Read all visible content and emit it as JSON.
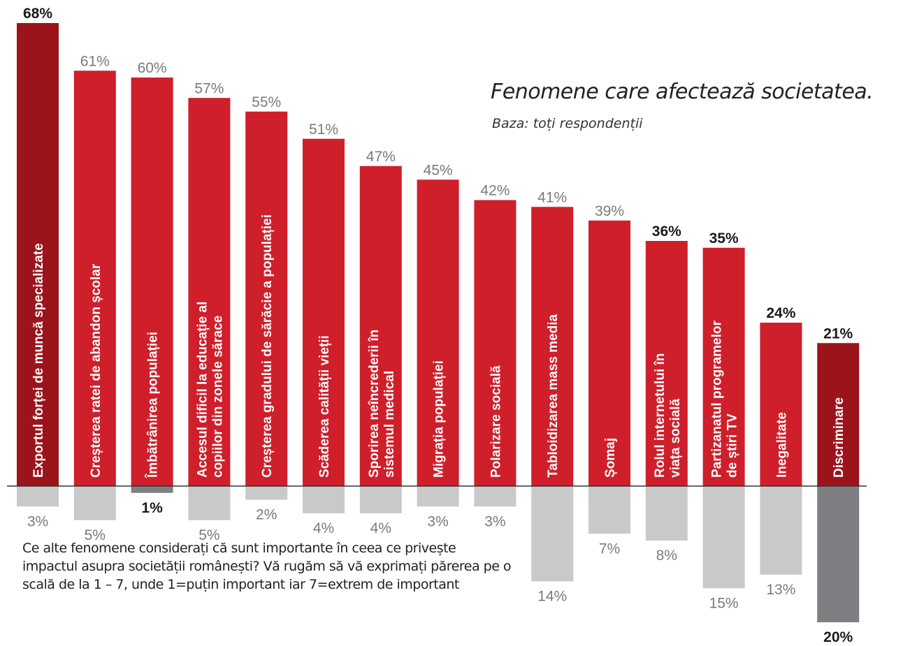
{
  "title": "Fenomene care afectează societatea.",
  "subtitle": "Baza: toți respondenții",
  "question": "Ce alte fenomene considerați că sunt importante în ceea ce privește impactul asupra societății românești? Vă rugăm să vă exprimați părerea pe o scală de la 1 – 7, unde 1=puțin important iar 7=extrem de important",
  "colors": {
    "positive": "#cf1f2b",
    "positive_highlight": "#9b141c",
    "negative": "#c9c9c9",
    "negative_highlight": "#7f7f83",
    "label_normal": "#7a7a7a",
    "label_bold": "#1a1a1a"
  },
  "chart_data": {
    "type": "bar",
    "title": "Fenomene care afectează societatea.",
    "subtitle": "Baza: toți respondenții",
    "series": [
      {
        "key": "important",
        "description": "bars above baseline"
      },
      {
        "key": "unimportant",
        "description": "bars below baseline"
      }
    ],
    "items": [
      {
        "category": "Exportul forței de muncă specializate",
        "important": 68,
        "important_label": "68%",
        "unimportant": 3,
        "unimportant_label": "3%",
        "highlight": "top"
      },
      {
        "category": "Creșterea ratei de abandon școlar",
        "important": 61,
        "important_label": "61%",
        "unimportant": 5,
        "unimportant_label": "5%"
      },
      {
        "category": "Îmbătrânirea populației",
        "important": 60,
        "important_label": "60%",
        "unimportant": 1,
        "unimportant_label": "1%",
        "highlight": "bottom"
      },
      {
        "category": "Accesul dificil la educație al copiilor din zonele sărace",
        "important": 57,
        "important_label": "57%",
        "unimportant": 5,
        "unimportant_label": "5%"
      },
      {
        "category": "Creșterea gradului de sărăcie a populației",
        "important": 55,
        "important_label": "55%",
        "unimportant": 2,
        "unimportant_label": "2%"
      },
      {
        "category": "Scăderea calității vieții",
        "important": 51,
        "important_label": "51%",
        "unimportant": 4,
        "unimportant_label": "4%"
      },
      {
        "category": "Sporirea neîncrederii în sistemul medical",
        "important": 47,
        "important_label": "47%",
        "unimportant": 4,
        "unimportant_label": "4%"
      },
      {
        "category": "Migrația populației",
        "important": 45,
        "important_label": "45%",
        "unimportant": 3,
        "unimportant_label": "3%"
      },
      {
        "category": "Polarizare socială",
        "important": 42,
        "important_label": "42%",
        "unimportant": 3,
        "unimportant_label": "3%"
      },
      {
        "category": "Tabloidizarea mass media",
        "important": 41,
        "important_label": "41%",
        "unimportant": 14,
        "unimportant_label": "14%"
      },
      {
        "category": "Șomaj",
        "important": 39,
        "important_label": "39%",
        "unimportant": 7,
        "unimportant_label": "7%"
      },
      {
        "category": "Rolul internetului în viața socială",
        "important": 36,
        "important_label": "36%",
        "unimportant": 8,
        "unimportant_label": "8%",
        "bold_top_label": true
      },
      {
        "category": "Partizanatul programelor de știri TV",
        "important": 35,
        "important_label": "35%",
        "unimportant": 15,
        "unimportant_label": "15%",
        "bold_top_label": true
      },
      {
        "category": "Inegalitate",
        "important": 24,
        "important_label": "24%",
        "unimportant": 13,
        "unimportant_label": "13%",
        "bold_top_label": true
      },
      {
        "category": "Discriminare",
        "important": 21,
        "important_label": "21%",
        "unimportant": 20,
        "unimportant_label": "20%",
        "highlight": "both"
      }
    ],
    "category_label_lines": [
      [
        "Exportul forței de muncă specializate"
      ],
      [
        "Creșterea ratei de abandon școlar"
      ],
      [
        "Îmbătrânirea populației"
      ],
      [
        "Accesul dificil la educație al",
        "copiilor din zonele sărace"
      ],
      [
        "Creșterea gradului de sărăcie a populației"
      ],
      [
        "Scăderea calității vieții"
      ],
      [
        "Sporirea neîncrederii în",
        "sistemul medical"
      ],
      [
        "Migrația populației"
      ],
      [
        "Polarizare socială"
      ],
      [
        "Tabloidizarea mass media"
      ],
      [
        "Șomaj"
      ],
      [
        "Rolul internetului în",
        "viața socială"
      ],
      [
        "Partizanatul programelor",
        "de știri TV"
      ],
      [
        "Inegalitate"
      ],
      [
        "Discriminare"
      ]
    ],
    "ylim": [
      -20,
      68
    ],
    "grid": false,
    "legend": "none"
  }
}
